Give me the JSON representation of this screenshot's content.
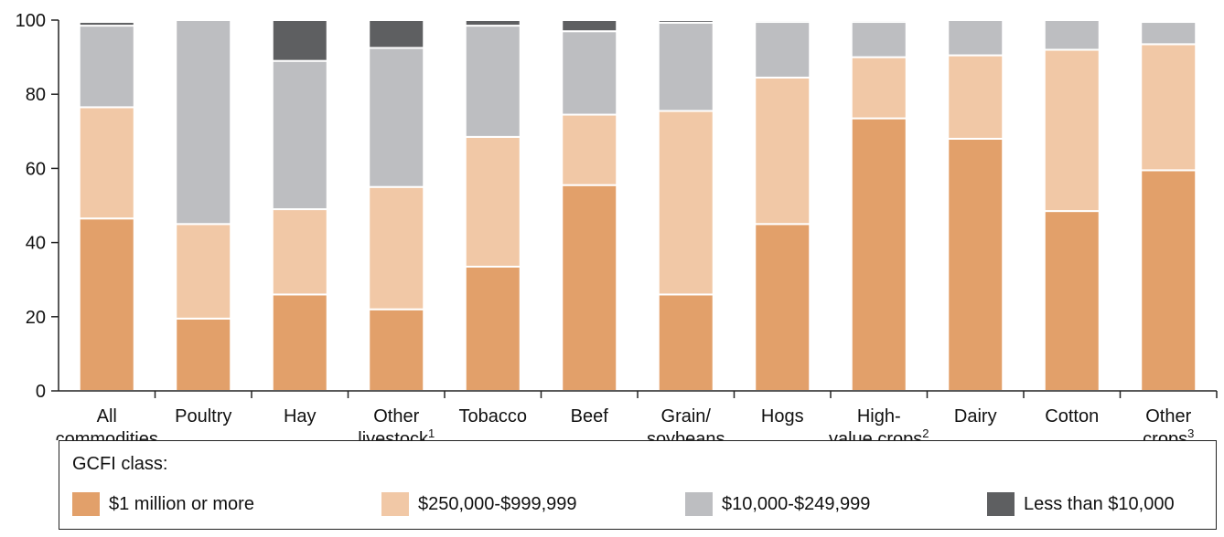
{
  "chart_data": {
    "type": "bar",
    "stacked": true,
    "categories": [
      [
        "All",
        "commodities"
      ],
      [
        "Poultry"
      ],
      [
        "Hay"
      ],
      [
        "Other",
        "livestock",
        "1"
      ],
      [
        "Tobacco"
      ],
      [
        "Beef"
      ],
      [
        "Grain/",
        "soybeans"
      ],
      [
        "Hogs"
      ],
      [
        "High-",
        "value crops",
        "2"
      ],
      [
        "Dairy"
      ],
      [
        "Cotton"
      ],
      [
        "Other",
        "crops",
        "3"
      ]
    ],
    "series": [
      {
        "name": "$1 million or more",
        "color": "#e2a06a",
        "values": [
          46.5,
          19.5,
          26,
          22,
          33.5,
          55.5,
          26,
          45,
          73.5,
          68,
          48.5,
          59.5
        ]
      },
      {
        "name": "$250,000-$999,999",
        "color": "#f1c8a6",
        "values": [
          30,
          25.5,
          23,
          33,
          35,
          19,
          49.5,
          39.5,
          16.5,
          22.5,
          43.5,
          34
        ]
      },
      {
        "name": "$10,000-$249,999",
        "color": "#bdbec1",
        "values": [
          22,
          55,
          40,
          37.5,
          30,
          22.5,
          23.8,
          15,
          9.5,
          9.5,
          8,
          6
        ]
      },
      {
        "name": "Less than $10,000",
        "color": "#5e5f61",
        "values": [
          1,
          0,
          11,
          7.5,
          1.5,
          3,
          0.7,
          0.5,
          0.5,
          0,
          0,
          0
        ]
      }
    ],
    "ylim": [
      0,
      100
    ],
    "yticks": [
      0,
      20,
      40,
      60,
      80,
      100
    ],
    "title": "",
    "xlabel": "",
    "ylabel": "",
    "legend_title": "GCFI class:",
    "legend_position": "bottom"
  }
}
